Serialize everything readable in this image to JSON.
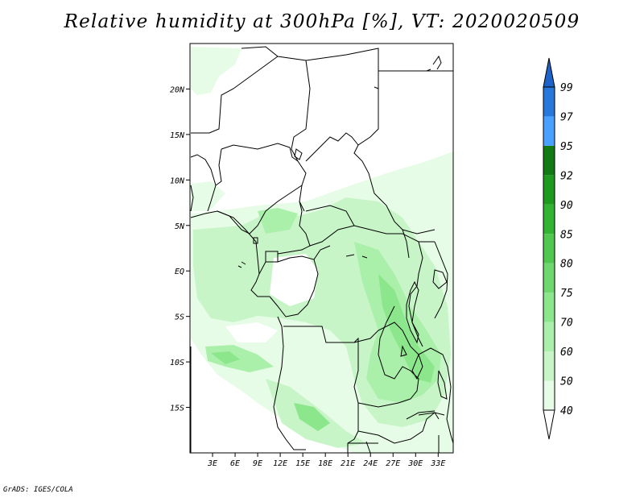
{
  "title": "Relative humidity at 300hPa [%], VT: 2020020509",
  "credit": "GrADS: IGES/COLA",
  "map": {
    "lat_labels": [
      "20N",
      "15N",
      "10N",
      "5N",
      "EQ",
      "5S",
      "10S",
      "15S"
    ],
    "lon_labels": [
      "3E",
      "6E",
      "9E",
      "12E",
      "15E",
      "18E",
      "21E",
      "24E",
      "27E",
      "30E",
      "33E"
    ],
    "lon_range": [
      0,
      35
    ],
    "lat_range": [
      -20,
      25
    ]
  },
  "colorbar": {
    "levels": [
      "40",
      "50",
      "60",
      "70",
      "75",
      "80",
      "85",
      "90",
      "92",
      "95",
      "97",
      "99"
    ],
    "colors": [
      "#ffffff",
      "#e6fce6",
      "#c8f5c8",
      "#aaf0aa",
      "#8ce68c",
      "#6ed86e",
      "#50c850",
      "#32b432",
      "#1e9b1e",
      "#127a12",
      "#4aa0ff",
      "#2878dc",
      "#1e64c8"
    ]
  },
  "fill_colors": {
    "light": "#e6fce6",
    "medium": "#c8f5c8",
    "strong": "#aaf0aa",
    "deep": "#8ce68c"
  }
}
